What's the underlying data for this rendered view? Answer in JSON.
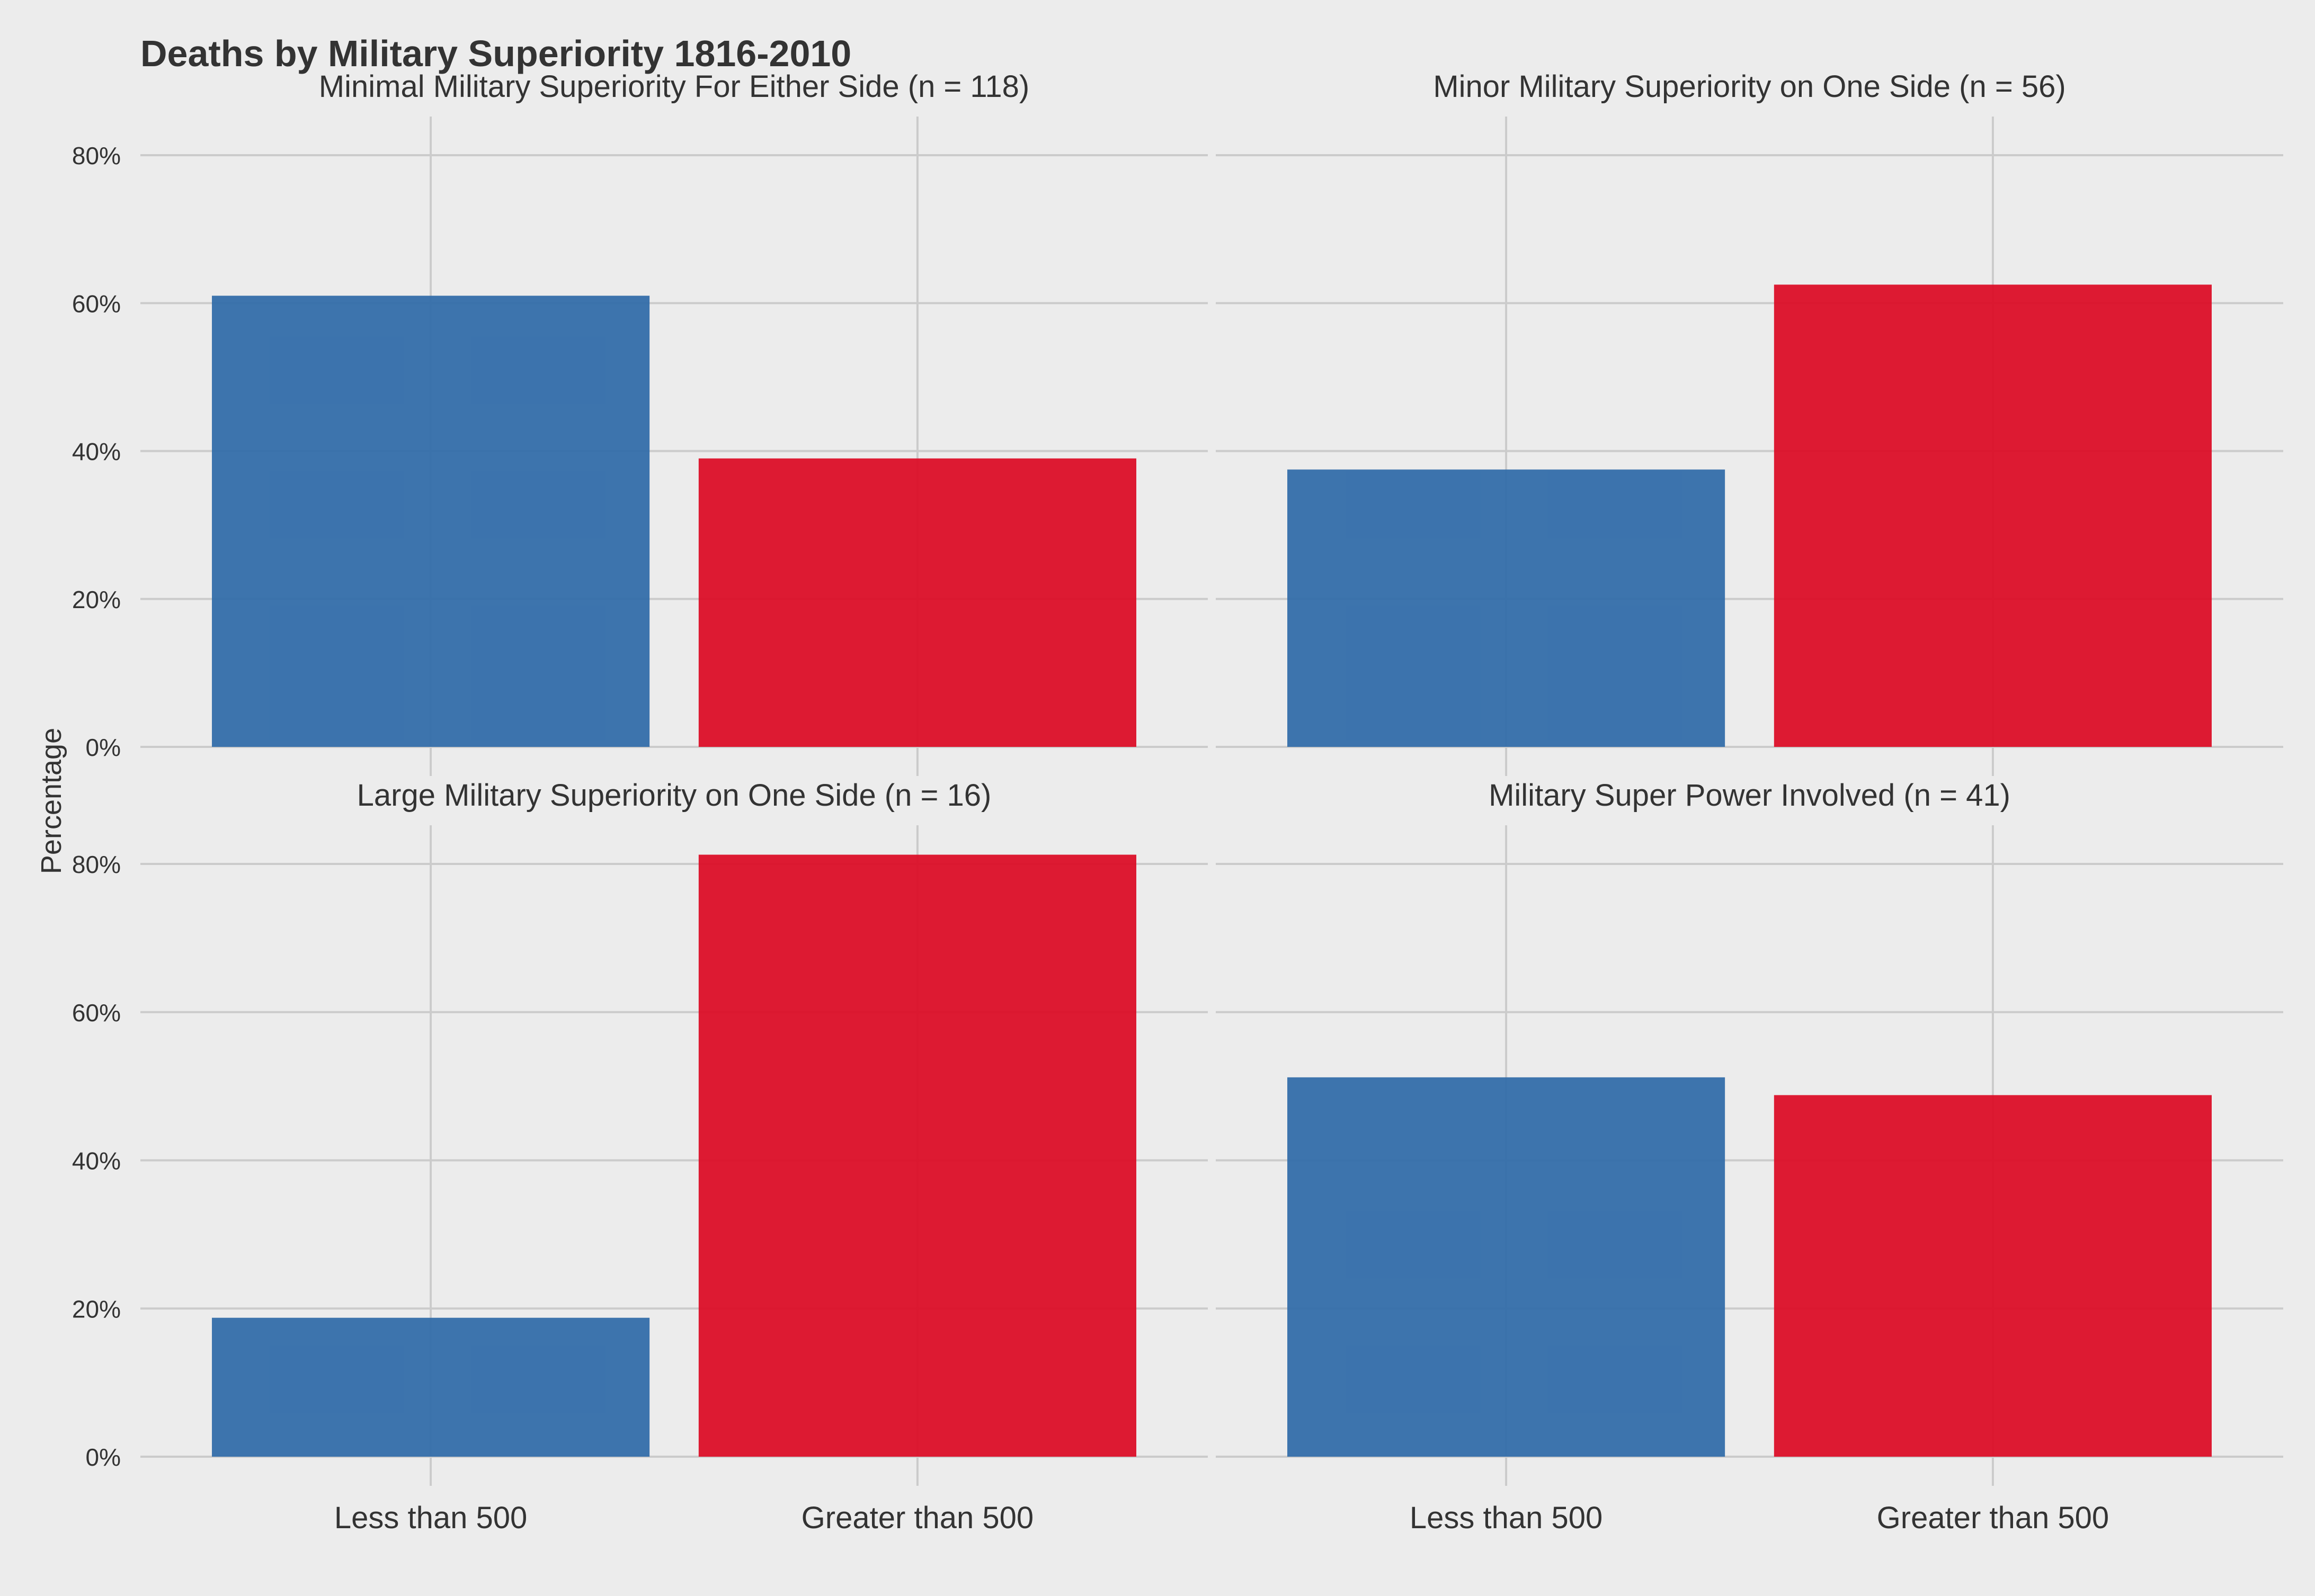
{
  "chart_data": {
    "type": "bar",
    "title": "Deaths by Military Superiority 1816-2010",
    "ylabel": "Percentage",
    "xlabel": "",
    "ylim": [
      0,
      85
    ],
    "yticks": [
      0,
      20,
      40,
      60,
      80
    ],
    "ytick_labels": [
      "0%",
      "20%",
      "40%",
      "60%",
      "80%"
    ],
    "categories": [
      "Less than 500",
      "Greater than 500"
    ],
    "category_colors": [
      "#2f6aa8",
      "#dc0a24"
    ],
    "grid": true,
    "legend": "none",
    "panels": [
      {
        "title": "Minimal Military Superiority For Either Side (n = 118)",
        "values": [
          61.0,
          39.0
        ]
      },
      {
        "title": "Minor Military Superiority on One Side (n = 56)",
        "values": [
          37.5,
          62.5
        ]
      },
      {
        "title": "Large Military Superiority on One Side (n = 16)",
        "values": [
          18.75,
          81.25
        ]
      },
      {
        "title": "Military Super Power Involved (n = 41)",
        "values": [
          51.2,
          48.8
        ]
      }
    ]
  }
}
